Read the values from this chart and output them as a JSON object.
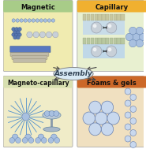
{
  "fig_width": 1.85,
  "fig_height": 1.89,
  "dpi": 100,
  "bg_color": "#ffffff",
  "panel_magnetic_bg": "#f0ebb0",
  "panel_magnetic_header": "#a8cc88",
  "panel_magnetic_title": "Magnetic",
  "panel_capillary_bg": "#e8f0d0",
  "panel_capillary_header": "#f0b030",
  "panel_capillary_title": "Capillary",
  "panel_magneto_bg": "#f0ecc8",
  "panel_magneto_header": "#d8e0b0",
  "panel_magneto_title": "Magneto-capillary",
  "panel_foams_bg": "#f0e0c0",
  "panel_foams_header": "#cc6828",
  "panel_foams_title": "Foams & gels",
  "assembly_label": "Assembly",
  "assembly_ellipse_color": "#d8eaf5",
  "assembly_ellipse_edge": "#888888",
  "arrow_color": "#444444",
  "particle_blue": "#5878b0",
  "particle_blue_light": "#a8c0e0",
  "particle_gray": "#9098a8",
  "particle_gray_light": "#c8d0d8"
}
